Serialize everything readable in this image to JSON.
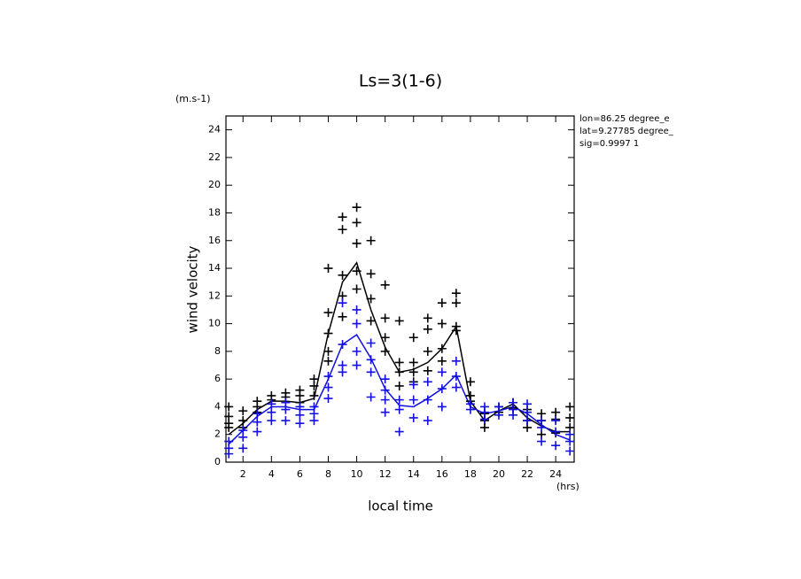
{
  "chart_data": {
    "type": "line",
    "title": "Ls=3(1-6)",
    "y_unit": "(m.s-1)",
    "y_label": "wind velocity",
    "x_label": "local time",
    "x_unit": "(hrs)",
    "annotations": [
      "lon=86.25 degree_e",
      "lat=9.27785 degree_",
      "sig=0.9997 1"
    ],
    "xlim": [
      0.8,
      25.3
    ],
    "ylim": [
      0,
      25
    ],
    "xticks": [
      2,
      4,
      6,
      8,
      10,
      12,
      14,
      16,
      18,
      20,
      22,
      24
    ],
    "yticks": [
      0,
      2,
      4,
      6,
      8,
      10,
      12,
      14,
      16,
      18,
      20,
      22,
      24
    ],
    "x": [
      1,
      2,
      3,
      4,
      5,
      6,
      7,
      8,
      9,
      10,
      11,
      12,
      13,
      14,
      15,
      16,
      17,
      18,
      19,
      20,
      21,
      22,
      23,
      24,
      25
    ],
    "series": [
      {
        "style": "line",
        "color": "#000000",
        "values": [
          2.0,
          2.8,
          3.8,
          4.4,
          4.4,
          4.3,
          4.6,
          9.3,
          13.0,
          14.4,
          11.0,
          8.3,
          6.5,
          6.7,
          7.2,
          8.2,
          9.8,
          4.4,
          3.0,
          3.7,
          4.2,
          3.2,
          2.6,
          2.2,
          2.2
        ]
      },
      {
        "style": "line",
        "color": "#1010e0",
        "values": [
          1.3,
          2.3,
          3.3,
          4.0,
          4.0,
          3.8,
          3.8,
          6.0,
          8.5,
          9.2,
          7.5,
          5.3,
          4.1,
          4.0,
          4.6,
          5.3,
          6.3,
          4.0,
          3.5,
          3.7,
          4.0,
          3.5,
          2.7,
          2.0,
          1.6
        ]
      },
      {
        "style": "markers",
        "color": "#000000",
        "x": [
          1,
          1,
          1,
          1,
          2,
          2,
          2,
          3,
          3,
          3,
          4,
          4,
          5,
          5,
          6,
          6,
          6,
          7,
          7,
          7,
          8,
          8,
          8,
          8,
          8,
          9,
          9,
          9,
          9,
          9,
          10,
          10,
          10,
          10,
          10,
          11,
          11,
          11,
          11,
          12,
          12,
          12,
          12,
          13,
          13,
          13,
          13,
          14,
          14,
          14,
          14,
          15,
          15,
          15,
          15,
          16,
          16,
          16,
          16,
          17,
          17,
          17,
          17,
          18,
          18,
          18,
          19,
          19,
          19,
          20,
          20,
          21,
          21,
          22,
          22,
          22,
          23,
          23,
          23,
          24,
          24,
          24,
          25,
          25,
          25
        ],
        "values": [
          3.3,
          2.8,
          2.5,
          4.0,
          3.7,
          3.0,
          2.5,
          4.4,
          4.0,
          3.6,
          4.8,
          4.5,
          5.0,
          4.7,
          5.2,
          4.8,
          4.3,
          6.0,
          5.5,
          4.8,
          14.0,
          10.8,
          9.3,
          8.0,
          7.3,
          17.7,
          16.8,
          13.5,
          12.0,
          10.5,
          18.4,
          17.3,
          15.8,
          13.8,
          12.5,
          16.0,
          13.6,
          11.8,
          10.2,
          12.8,
          10.4,
          9.0,
          8.0,
          10.2,
          7.2,
          6.5,
          5.5,
          9.0,
          7.2,
          6.5,
          5.8,
          10.4,
          9.6,
          8.0,
          6.6,
          11.5,
          10.0,
          8.2,
          7.3,
          12.2,
          11.5,
          9.8,
          9.5,
          5.8,
          4.8,
          4.4,
          3.5,
          3.0,
          2.5,
          4.0,
          3.6,
          4.3,
          3.9,
          3.8,
          3.0,
          2.5,
          3.5,
          3.0,
          2.0,
          3.6,
          3.1,
          2.1,
          4.0,
          3.2,
          2.5
        ]
      },
      {
        "style": "markers",
        "color": "#1010e0",
        "x": [
          1,
          1,
          1,
          2,
          2,
          2,
          3,
          3,
          3,
          4,
          4,
          4,
          5,
          5,
          5,
          6,
          6,
          6,
          7,
          7,
          7,
          8,
          8,
          8,
          9,
          9,
          9,
          9,
          10,
          10,
          10,
          10,
          11,
          11,
          11,
          11,
          12,
          12,
          12,
          12,
          13,
          13,
          13,
          14,
          14,
          14,
          15,
          15,
          15,
          16,
          16,
          16,
          17,
          17,
          17,
          18,
          18,
          19,
          19,
          19,
          20,
          20,
          21,
          21,
          21,
          22,
          22,
          22,
          23,
          23,
          23,
          24,
          24,
          24,
          25,
          25,
          25
        ],
        "values": [
          1.5,
          1.0,
          0.6,
          2.3,
          1.8,
          1.0,
          3.5,
          2.9,
          2.2,
          4.2,
          3.6,
          3.0,
          4.3,
          3.8,
          3.0,
          4.0,
          3.4,
          2.8,
          4.0,
          3.5,
          3.0,
          6.2,
          5.4,
          4.6,
          11.5,
          8.5,
          7.0,
          6.5,
          11.0,
          10.0,
          8.0,
          7.0,
          8.6,
          7.4,
          6.5,
          4.7,
          6.0,
          5.2,
          4.5,
          3.6,
          4.5,
          3.8,
          2.2,
          5.6,
          4.5,
          3.2,
          5.8,
          4.5,
          3.0,
          6.5,
          5.3,
          4.0,
          7.3,
          6.2,
          5.4,
          4.2,
          3.8,
          4.0,
          3.6,
          3.1,
          4.0,
          3.4,
          4.3,
          3.8,
          3.4,
          4.2,
          3.6,
          3.0,
          3.0,
          2.5,
          1.5,
          3.0,
          2.2,
          1.2,
          2.0,
          1.5,
          0.8
        ]
      }
    ]
  }
}
